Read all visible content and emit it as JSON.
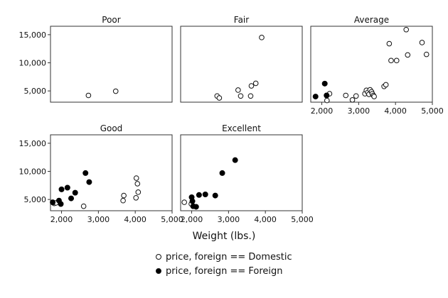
{
  "chart_data": {
    "type": "scatter",
    "xlabel": "Weight (lbs.)",
    "ylabel": "",
    "xlim": [
      1700,
      5000
    ],
    "ylim": [
      3000,
      16500
    ],
    "xticks": [
      2000,
      3000,
      4000,
      5000
    ],
    "xtick_labels": [
      "2,000",
      "3,000",
      "4,000",
      "5,000"
    ],
    "yticks": [
      5000,
      10000,
      15000
    ],
    "ytick_labels": [
      "5,000",
      "10,000",
      "15,000"
    ],
    "grid": false,
    "legend_position": "bottom",
    "legend": [
      {
        "key": "domestic",
        "label": "price, foreign == Domestic",
        "marker": "hollow-circle"
      },
      {
        "key": "foreign",
        "label": "price, foreign == Foreign",
        "marker": "filled-circle"
      }
    ],
    "panels": [
      {
        "title": "Poor",
        "domestic": [
          [
            2730,
            4200
          ],
          [
            3470,
            4950
          ]
        ],
        "foreign": []
      },
      {
        "title": "Fair",
        "domestic": [
          [
            2690,
            4100
          ],
          [
            2750,
            3750
          ],
          [
            3260,
            5150
          ],
          [
            3330,
            4100
          ],
          [
            3600,
            4100
          ],
          [
            3620,
            5900
          ],
          [
            3740,
            6350
          ],
          [
            3900,
            14500
          ]
        ],
        "foreign": []
      },
      {
        "title": "Average",
        "domestic": [
          [
            2140,
            3300
          ],
          [
            2210,
            4500
          ],
          [
            2650,
            4200
          ],
          [
            2830,
            3400
          ],
          [
            2930,
            4100
          ],
          [
            3170,
            4500
          ],
          [
            3210,
            5100
          ],
          [
            3250,
            4750
          ],
          [
            3280,
            4400
          ],
          [
            3310,
            5200
          ],
          [
            3350,
            4850
          ],
          [
            3370,
            4500
          ],
          [
            3400,
            4200
          ],
          [
            3420,
            4000
          ],
          [
            3690,
            5800
          ],
          [
            3740,
            6100
          ],
          [
            3830,
            13400
          ],
          [
            3880,
            10400
          ],
          [
            4030,
            10400
          ],
          [
            4290,
            15900
          ],
          [
            4330,
            11400
          ],
          [
            4720,
            13600
          ],
          [
            4840,
            11500
          ]
        ],
        "foreign": [
          [
            1830,
            4000
          ],
          [
            2080,
            6300
          ],
          [
            2130,
            4200
          ]
        ]
      },
      {
        "title": "Good",
        "domestic": [
          [
            1800,
            4300
          ],
          [
            1850,
            4400
          ],
          [
            2600,
            3800
          ],
          [
            3670,
            4800
          ],
          [
            3690,
            5700
          ],
          [
            4020,
            5300
          ],
          [
            4030,
            8800
          ],
          [
            4060,
            7800
          ],
          [
            4080,
            6300
          ]
        ],
        "foreign": [
          [
            1760,
            4500
          ],
          [
            1930,
            4800
          ],
          [
            1980,
            4200
          ],
          [
            2000,
            6800
          ],
          [
            2160,
            7100
          ],
          [
            2260,
            5200
          ],
          [
            2370,
            6200
          ],
          [
            2650,
            9700
          ],
          [
            2750,
            8100
          ]
        ]
      },
      {
        "title": "Excellent",
        "domestic": [
          [
            1800,
            4500
          ],
          [
            1990,
            4200
          ]
        ],
        "foreign": [
          [
            2000,
            5400
          ],
          [
            2020,
            4700
          ],
          [
            2040,
            3800
          ],
          [
            2120,
            3700
          ],
          [
            2200,
            5800
          ],
          [
            2370,
            5900
          ],
          [
            2640,
            5700
          ],
          [
            2830,
            9700
          ],
          [
            3180,
            12000
          ]
        ]
      }
    ]
  }
}
